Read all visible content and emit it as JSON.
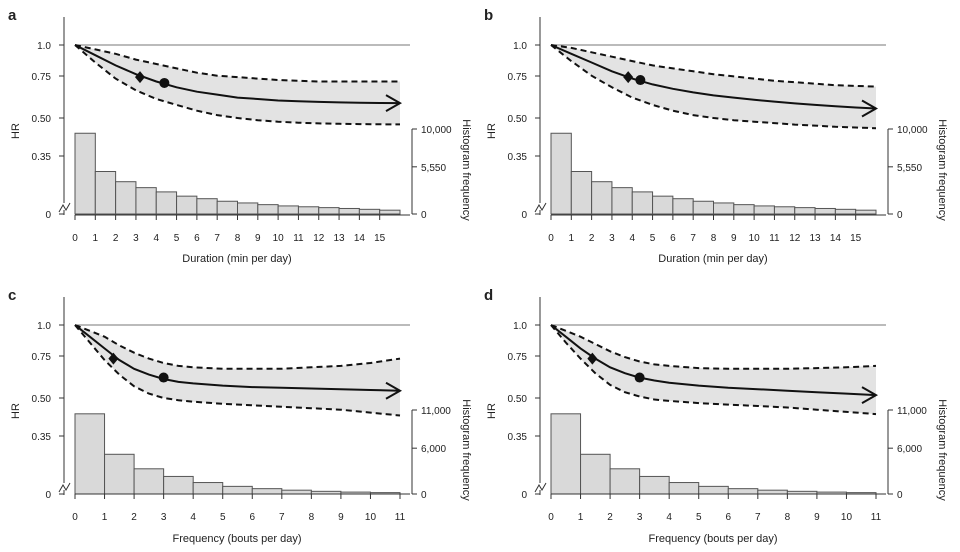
{
  "chart_data": [
    {
      "panel": "a",
      "type": "line",
      "xlabel": "Duration (min per day)",
      "ylabel": "HR",
      "y2label": "Histogram frequency",
      "x_ticks": [
        "0",
        "1",
        "2",
        "3",
        "4",
        "5",
        "6",
        "7",
        "8",
        "9",
        "10",
        "11",
        "12",
        "13",
        "14",
        "15"
      ],
      "x_range": [
        0,
        16
      ],
      "hr_ticks": [
        "1.0",
        "0.75",
        "0.50",
        "0.35",
        "0"
      ],
      "freq_ticks": [
        "10,000",
        "5,550",
        "0"
      ],
      "hr_reference": 1.0,
      "series": [
        {
          "x": [
            0,
            1,
            2,
            3,
            4,
            5,
            6,
            7,
            8,
            9,
            10,
            11,
            12,
            13,
            14,
            15,
            16
          ],
          "hr": [
            1.0,
            0.93,
            0.86,
            0.8,
            0.75,
            0.71,
            0.68,
            0.66,
            0.64,
            0.63,
            0.62,
            0.615,
            0.61,
            0.607,
            0.605,
            0.603,
            0.602
          ],
          "lower": [
            1.0,
            0.88,
            0.77,
            0.69,
            0.63,
            0.59,
            0.55,
            0.52,
            0.5,
            0.485,
            0.475,
            0.468,
            0.463,
            0.46,
            0.458,
            0.457,
            0.456
          ],
          "upper": [
            1.0,
            0.97,
            0.94,
            0.9,
            0.87,
            0.84,
            0.81,
            0.79,
            0.78,
            0.77,
            0.76,
            0.755,
            0.75,
            0.75,
            0.75,
            0.75,
            0.75
          ]
        }
      ],
      "markers": [
        {
          "shape": "diamond",
          "x": 3.2,
          "hr": 0.78
        },
        {
          "shape": "circle",
          "x": 4.4,
          "hr": 0.74
        }
      ],
      "histogram": {
        "bin_width": 1,
        "values": [
          9500,
          5000,
          3800,
          3100,
          2600,
          2100,
          1800,
          1500,
          1300,
          1100,
          950,
          850,
          750,
          650,
          550,
          450
        ]
      }
    },
    {
      "panel": "b",
      "type": "line",
      "xlabel": "Duration (min per day)",
      "ylabel": "HR",
      "y2label": "Histogram frequency",
      "x_ticks": [
        "0",
        "1",
        "2",
        "3",
        "4",
        "5",
        "6",
        "7",
        "8",
        "9",
        "10",
        "11",
        "12",
        "13",
        "14",
        "15"
      ],
      "x_range": [
        0,
        16
      ],
      "hr_ticks": [
        "1.0",
        "0.75",
        "0.50",
        "0.35",
        "0"
      ],
      "freq_ticks": [
        "10,000",
        "5,550",
        "0"
      ],
      "hr_reference": 1.0,
      "series": [
        {
          "x": [
            0,
            1,
            2,
            3,
            4,
            5,
            6,
            7,
            8,
            9,
            10,
            11,
            12,
            13,
            14,
            15,
            16
          ],
          "hr": [
            1.0,
            0.94,
            0.88,
            0.82,
            0.77,
            0.73,
            0.7,
            0.675,
            0.655,
            0.64,
            0.625,
            0.612,
            0.6,
            0.59,
            0.58,
            0.572,
            0.565
          ],
          "lower": [
            1.0,
            0.89,
            0.79,
            0.71,
            0.64,
            0.59,
            0.55,
            0.52,
            0.5,
            0.485,
            0.475,
            0.465,
            0.455,
            0.448,
            0.44,
            0.435,
            0.43
          ],
          "upper": [
            1.0,
            0.98,
            0.95,
            0.92,
            0.89,
            0.86,
            0.84,
            0.82,
            0.8,
            0.785,
            0.77,
            0.755,
            0.745,
            0.735,
            0.725,
            0.72,
            0.715
          ]
        }
      ],
      "markers": [
        {
          "shape": "diamond",
          "x": 3.8,
          "hr": 0.78
        },
        {
          "shape": "circle",
          "x": 4.4,
          "hr": 0.76
        }
      ],
      "histogram": {
        "bin_width": 1,
        "values": [
          9500,
          5000,
          3800,
          3100,
          2600,
          2100,
          1800,
          1500,
          1300,
          1100,
          950,
          850,
          750,
          650,
          550,
          450
        ]
      }
    },
    {
      "panel": "c",
      "type": "line",
      "xlabel": "Frequency (bouts per day)",
      "ylabel": "HR",
      "y2label": "Histogram frequency",
      "x_ticks": [
        "0",
        "1",
        "2",
        "3",
        "4",
        "5",
        "6",
        "7",
        "8",
        "9",
        "10",
        "11"
      ],
      "x_range": [
        0,
        11
      ],
      "hr_ticks": [
        "1.0",
        "0.75",
        "0.50",
        "0.35",
        "0"
      ],
      "freq_ticks": [
        "11,000",
        "6,000",
        "0"
      ],
      "hr_reference": 1.0,
      "series": [
        {
          "x": [
            0,
            0.5,
            1,
            1.5,
            2,
            2.5,
            3,
            3.5,
            4,
            5,
            6,
            7,
            8,
            9,
            10,
            11
          ],
          "hr": [
            1.0,
            0.92,
            0.84,
            0.76,
            0.7,
            0.66,
            0.63,
            0.61,
            0.6,
            0.585,
            0.575,
            0.57,
            0.565,
            0.56,
            0.555,
            0.55
          ],
          "lower": [
            1.0,
            0.88,
            0.76,
            0.66,
            0.58,
            0.53,
            0.5,
            0.485,
            0.475,
            0.46,
            0.45,
            0.44,
            0.43,
            0.42,
            0.4,
            0.38
          ],
          "upper": [
            1.0,
            0.96,
            0.92,
            0.86,
            0.81,
            0.77,
            0.74,
            0.72,
            0.71,
            0.7,
            0.7,
            0.7,
            0.71,
            0.72,
            0.74,
            0.77
          ]
        }
      ],
      "markers": [
        {
          "shape": "diamond",
          "x": 1.3,
          "hr": 0.77
        },
        {
          "shape": "circle",
          "x": 3.0,
          "hr": 0.64
        }
      ],
      "histogram": {
        "bin_width": 1,
        "values": [
          10500,
          5200,
          3300,
          2300,
          1500,
          1000,
          700,
          500,
          350,
          250,
          180
        ]
      }
    },
    {
      "panel": "d",
      "type": "line",
      "xlabel": "Frequency (bouts per day)",
      "ylabel": "HR",
      "y2label": "Histogram frequency",
      "x_ticks": [
        "0",
        "1",
        "2",
        "3",
        "4",
        "5",
        "6",
        "7",
        "8",
        "9",
        "10",
        "11"
      ],
      "x_range": [
        0,
        11
      ],
      "hr_ticks": [
        "1.0",
        "0.75",
        "0.50",
        "0.35",
        "0"
      ],
      "freq_ticks": [
        "11,000",
        "6,000",
        "0"
      ],
      "hr_reference": 1.0,
      "series": [
        {
          "x": [
            0,
            0.5,
            1,
            1.5,
            2,
            2.5,
            3,
            3.5,
            4,
            5,
            6,
            7,
            8,
            9,
            10,
            11
          ],
          "hr": [
            1.0,
            0.92,
            0.84,
            0.77,
            0.71,
            0.67,
            0.64,
            0.62,
            0.605,
            0.585,
            0.57,
            0.56,
            0.55,
            0.54,
            0.53,
            0.52
          ],
          "lower": [
            1.0,
            0.88,
            0.77,
            0.67,
            0.59,
            0.54,
            0.51,
            0.49,
            0.48,
            0.465,
            0.455,
            0.445,
            0.435,
            0.42,
            0.405,
            0.39
          ],
          "upper": [
            1.0,
            0.96,
            0.92,
            0.87,
            0.82,
            0.78,
            0.75,
            0.73,
            0.72,
            0.705,
            0.7,
            0.7,
            0.7,
            0.705,
            0.71,
            0.72
          ]
        }
      ],
      "markers": [
        {
          "shape": "diamond",
          "x": 1.4,
          "hr": 0.77
        },
        {
          "shape": "circle",
          "x": 3.0,
          "hr": 0.64
        }
      ],
      "histogram": {
        "bin_width": 1,
        "values": [
          10500,
          5200,
          3300,
          2300,
          1500,
          1000,
          700,
          500,
          350,
          250,
          180
        ]
      }
    }
  ],
  "style": {
    "band_color": "#e3e3e3",
    "bar_fill": "#d9d9d9",
    "bar_stroke": "#555555",
    "line_color": "#111111",
    "axis_color": "#333333",
    "reference_line_color": "#777777"
  }
}
